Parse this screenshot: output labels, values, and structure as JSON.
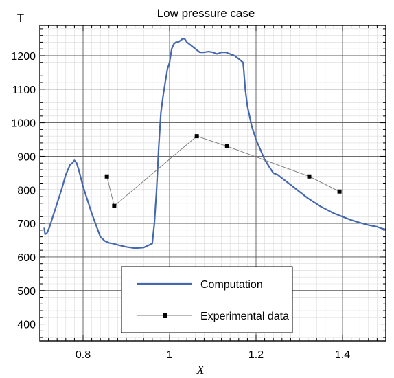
{
  "chart_data": {
    "type": "line",
    "title": "Low pressure case",
    "xlabel": "X",
    "ylabel": "T",
    "xlim": [
      0.7,
      1.5
    ],
    "ylim": [
      350,
      1290
    ],
    "grid": true,
    "minor_grid": true,
    "x_ticks": [
      0.8,
      1,
      1.2,
      1.4
    ],
    "x_tick_labels": [
      "0.8",
      "1",
      "1.2",
      "1.4"
    ],
    "y_ticks": [
      400,
      500,
      600,
      700,
      800,
      900,
      1000,
      1100,
      1200
    ],
    "y_tick_labels": [
      "400",
      "500",
      "600",
      "700",
      "800",
      "900",
      "1000",
      "1100",
      "1200"
    ],
    "legend_position": "bottom-center",
    "series": [
      {
        "name": "Computation",
        "color": "#4468b0",
        "style": "line",
        "x": [
          0.71,
          0.712,
          0.716,
          0.722,
          0.73,
          0.74,
          0.75,
          0.76,
          0.77,
          0.775,
          0.78,
          0.785,
          0.79,
          0.8,
          0.81,
          0.82,
          0.83,
          0.84,
          0.85,
          0.86,
          0.87,
          0.88,
          0.9,
          0.92,
          0.94,
          0.96,
          0.965,
          0.97,
          0.975,
          0.98,
          0.985,
          0.99,
          0.995,
          1.0,
          1.005,
          1.01,
          1.015,
          1.02,
          1.025,
          1.03,
          1.035,
          1.04,
          1.05,
          1.06,
          1.07,
          1.08,
          1.09,
          1.1,
          1.11,
          1.12,
          1.13,
          1.14,
          1.15,
          1.16,
          1.17,
          1.172,
          1.175,
          1.18,
          1.19,
          1.2,
          1.21,
          1.22,
          1.23,
          1.24,
          1.25,
          1.26,
          1.28,
          1.3,
          1.32,
          1.35,
          1.38,
          1.4,
          1.42,
          1.44,
          1.46,
          1.48,
          1.49,
          1.5
        ],
        "y": [
          687,
          668,
          670,
          688,
          720,
          760,
          800,
          845,
          875,
          880,
          888,
          880,
          860,
          810,
          770,
          730,
          695,
          660,
          648,
          642,
          640,
          636,
          630,
          626,
          628,
          640,
          700,
          800,
          930,
          1030,
          1080,
          1120,
          1160,
          1180,
          1220,
          1235,
          1240,
          1240,
          1245,
          1250,
          1250,
          1240,
          1230,
          1220,
          1210,
          1210,
          1212,
          1210,
          1205,
          1210,
          1210,
          1205,
          1200,
          1190,
          1180,
          1150,
          1100,
          1050,
          990,
          950,
          920,
          890,
          870,
          850,
          845,
          835,
          815,
          795,
          775,
          750,
          730,
          720,
          710,
          702,
          695,
          690,
          685,
          682
        ]
      },
      {
        "name": "Experimental data",
        "color": "#000000",
        "style": "line-marker",
        "x": [
          0.855,
          0.872,
          1.063,
          1.133,
          1.323,
          1.393
        ],
        "y": [
          840,
          752,
          960,
          930,
          840,
          795
        ]
      }
    ]
  }
}
